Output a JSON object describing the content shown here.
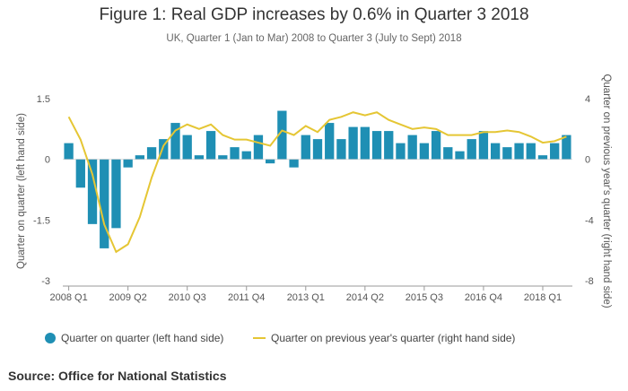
{
  "title": "Figure 1: Real GDP increases by 0.6% in Quarter 3 2018",
  "subtitle": "UK, Quarter 1 (Jan to Mar) 2008 to Quarter 3 (July to Sept) 2018",
  "source": "Source: Office for National Statistics",
  "chart_data": {
    "type": "bar",
    "x": [
      "2008 Q1",
      "2008 Q2",
      "2008 Q3",
      "2008 Q4",
      "2009 Q1",
      "2009 Q2",
      "2009 Q3",
      "2009 Q4",
      "2010 Q1",
      "2010 Q2",
      "2010 Q3",
      "2010 Q4",
      "2011 Q1",
      "2011 Q2",
      "2011 Q3",
      "2011 Q4",
      "2012 Q1",
      "2012 Q2",
      "2012 Q3",
      "2012 Q4",
      "2013 Q1",
      "2013 Q2",
      "2013 Q3",
      "2013 Q4",
      "2014 Q1",
      "2014 Q2",
      "2014 Q3",
      "2014 Q4",
      "2015 Q1",
      "2015 Q2",
      "2015 Q3",
      "2015 Q4",
      "2016 Q1",
      "2016 Q2",
      "2016 Q3",
      "2016 Q4",
      "2017 Q1",
      "2017 Q2",
      "2017 Q3",
      "2017 Q4",
      "2018 Q1",
      "2018 Q2",
      "2018 Q3"
    ],
    "x_tick_labels": [
      "2008 Q1",
      "2009 Q2",
      "2010 Q3",
      "2011 Q4",
      "2013 Q1",
      "2014 Q2",
      "2015 Q3",
      "2016 Q4",
      "2018 Q1"
    ],
    "series": [
      {
        "name": "Quarter on quarter (left hand side)",
        "type": "bar",
        "axis": "left",
        "color": "#1f8fb4",
        "values": [
          0.4,
          -0.7,
          -1.6,
          -2.2,
          -1.7,
          -0.2,
          0.1,
          0.3,
          0.5,
          0.9,
          0.6,
          0.1,
          0.7,
          0.1,
          0.3,
          0.2,
          0.6,
          -0.1,
          1.2,
          -0.2,
          0.6,
          0.5,
          0.9,
          0.5,
          0.8,
          0.8,
          0.7,
          0.7,
          0.4,
          0.6,
          0.4,
          0.7,
          0.3,
          0.2,
          0.5,
          0.7,
          0.4,
          0.3,
          0.4,
          0.4,
          0.1,
          0.4,
          0.6
        ]
      },
      {
        "name": "Quarter on previous year's quarter (right hand side)",
        "type": "line",
        "axis": "right",
        "color": "#e5c634",
        "values": [
          2.8,
          1.3,
          -1.0,
          -4.3,
          -6.1,
          -5.6,
          -3.8,
          -1.2,
          0.9,
          1.9,
          2.3,
          2.0,
          2.3,
          1.6,
          1.3,
          1.3,
          1.1,
          0.9,
          1.9,
          1.6,
          2.2,
          1.8,
          2.6,
          2.8,
          3.1,
          2.9,
          3.1,
          2.6,
          2.3,
          2.0,
          2.1,
          2.0,
          1.6,
          1.6,
          1.6,
          1.8,
          1.8,
          1.9,
          1.8,
          1.5,
          1.1,
          1.2,
          1.5
        ]
      }
    ],
    "ylabel_left": "Quarter on quarter (left hand side)",
    "ylabel_right": "Quarter on previous year's quarter (right hand side)",
    "ylim_left": [
      -3,
      1.5
    ],
    "yticks_left": [
      "1.5",
      "0",
      "-1.5",
      "-3"
    ],
    "ylim_right": [
      -8,
      4
    ],
    "yticks_right": [
      "4",
      "0",
      "-4",
      "-8"
    ],
    "grid": false,
    "legend_position": "bottom-left"
  }
}
